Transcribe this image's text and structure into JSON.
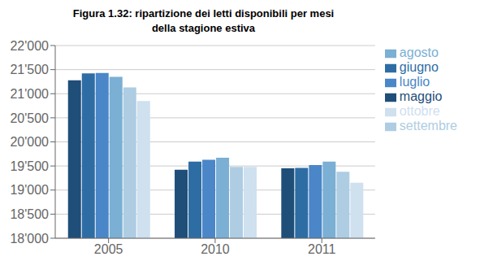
{
  "chart_data": {
    "type": "bar",
    "title": "Figura 1.32: ripartizione dei letti disponibili per mesi\ndella stagione estiva",
    "categories": [
      "2005",
      "2010",
      "2011"
    ],
    "series": [
      {
        "name": "maggio",
        "color": "#1f4e79",
        "values": [
          21280,
          19420,
          19450
        ]
      },
      {
        "name": "giugno",
        "color": "#2e6da4",
        "values": [
          21420,
          19590,
          19460
        ]
      },
      {
        "name": "luglio",
        "color": "#4a86c8",
        "values": [
          21430,
          19630,
          19520
        ]
      },
      {
        "name": "agosto",
        "color": "#7bafd4",
        "values": [
          21350,
          19670,
          19590
        ]
      },
      {
        "name": "settembre",
        "color": "#aecde3",
        "values": [
          21130,
          19480,
          19380
        ]
      },
      {
        "name": "ottobre",
        "color": "#cfe0ef",
        "values": [
          20850,
          19480,
          19150
        ]
      }
    ],
    "ylim": [
      18000,
      22000
    ],
    "yticks": [
      {
        "value": 18000,
        "label": "18'000"
      },
      {
        "value": 18500,
        "label": "18'500"
      },
      {
        "value": 19000,
        "label": "19'000"
      },
      {
        "value": 19500,
        "label": "19'500"
      },
      {
        "value": 20000,
        "label": "20'000"
      },
      {
        "value": 20500,
        "label": "20'500"
      },
      {
        "value": 21000,
        "label": "21'000"
      },
      {
        "value": 21500,
        "label": "21'500"
      },
      {
        "value": 22000,
        "label": "22'000"
      }
    ],
    "grid": true,
    "legend": "right"
  }
}
